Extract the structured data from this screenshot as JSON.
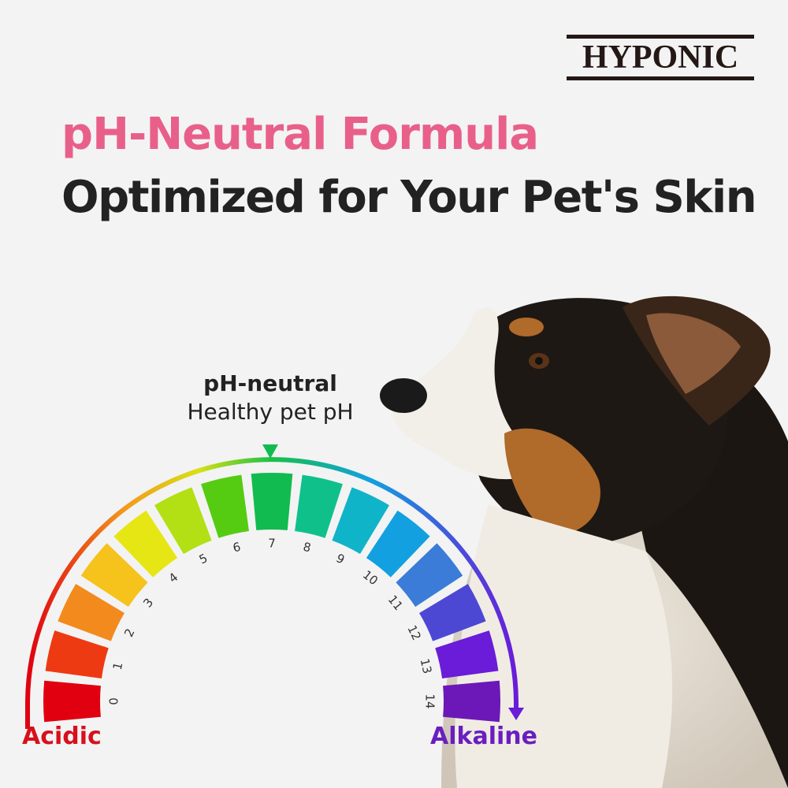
{
  "brand": {
    "logo_text": "HYPONIC"
  },
  "headline": {
    "line1": "pH-Neutral Formula",
    "line2": "Optimized for Your Pet's Skin"
  },
  "gauge": {
    "marker_title": "pH-neutral",
    "marker_subtitle": "Healthy pet pH",
    "marker_value": 7,
    "left_label": "Acidic",
    "right_label": "Alkaline",
    "scale": [
      "0",
      "1",
      "2",
      "3",
      "4",
      "5",
      "6",
      "7",
      "8",
      "9",
      "10",
      "11",
      "12",
      "13",
      "14"
    ],
    "segment_colors": [
      "#e00010",
      "#ee3a12",
      "#f38a1e",
      "#f6c21c",
      "#e6e614",
      "#b2e014",
      "#55cc12",
      "#12bb50",
      "#10c08a",
      "#10b4c8",
      "#12a0e0",
      "#3a7cd8",
      "#4c48d4",
      "#6a1cd8",
      "#6c18b8"
    ],
    "marker_color": "#12bb50"
  },
  "colors": {
    "headline_accent": "#e8608a",
    "acidic": "#d8101c",
    "alkaline": "#6a1ec0"
  }
}
